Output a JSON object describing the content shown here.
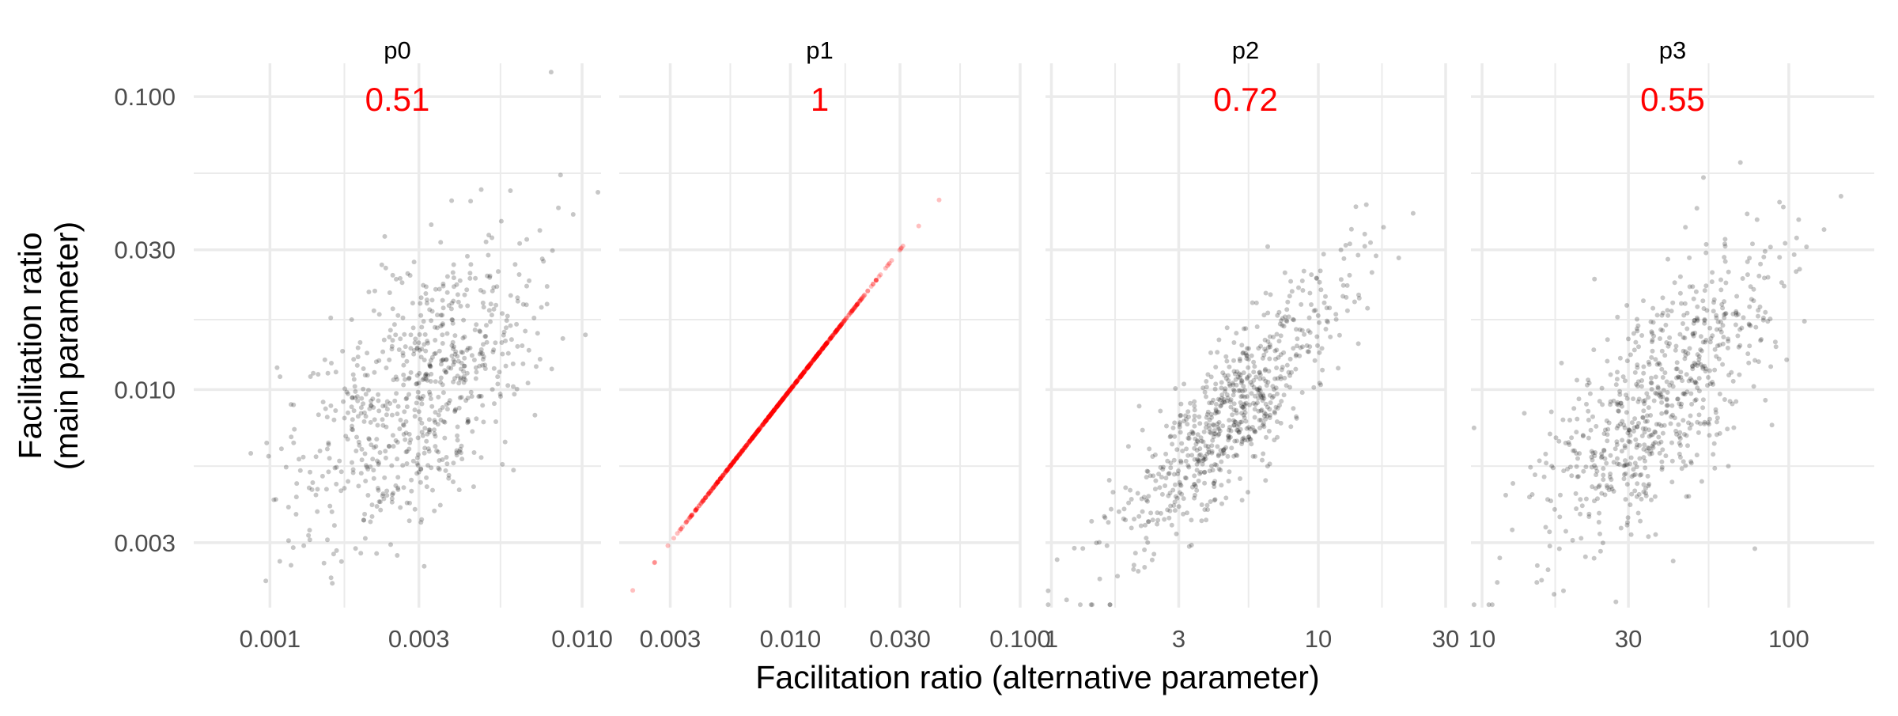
{
  "chart_data": {
    "type": "scatter",
    "xlabel": "Facilitation ratio (alternative parameter)",
    "ylabel": [
      "Facilitation ratio",
      "(main parameter)"
    ],
    "y_scale": "log",
    "ylim": [
      0.0018,
      0.13
    ],
    "y_ticks": [
      {
        "value": 0.003,
        "label": "0.003"
      },
      {
        "value": 0.01,
        "label": "0.010"
      },
      {
        "value": 0.03,
        "label": "0.030"
      },
      {
        "value": 0.1,
        "label": "0.100"
      }
    ],
    "point_count_per_panel": 700,
    "colors": {
      "points": "#000000",
      "highlight": "#ff0000",
      "grid": "#ebebeb",
      "text": "#4d4d4d",
      "title": "#000000"
    },
    "panels": [
      {
        "title": "p0",
        "correlation": "0.51",
        "x_scale": "log",
        "xlim": [
          0.00057,
          0.0115
        ],
        "x_ticks": [
          {
            "value": 0.001,
            "label": "0.001"
          },
          {
            "value": 0.003,
            "label": "0.003"
          },
          {
            "value": 0.01,
            "label": "0.010"
          }
        ],
        "trend": {
          "slope": 0.75,
          "intercept": -0.12,
          "scatter_sd": 0.22,
          "x_center": 0.003,
          "x_spread_sd": 0.19
        },
        "color": "#000000",
        "opacity": 0.22
      },
      {
        "title": "p1",
        "correlation": "1",
        "x_scale": "log",
        "xlim": [
          0.0018,
          0.1
        ],
        "x_ticks": [
          {
            "value": 0.003,
            "label": "0.003"
          },
          {
            "value": 0.01,
            "label": "0.010"
          },
          {
            "value": 0.03,
            "label": "0.030"
          },
          {
            "value": 0.1,
            "label": "0.100"
          }
        ],
        "trend": {
          "slope": 1.0,
          "intercept": 0.0,
          "scatter_sd": 0.0,
          "x_center": 0.009,
          "x_spread_sd": 0.22
        },
        "color": "#ff0000",
        "opacity": 0.25
      },
      {
        "title": "p2",
        "correlation": "0.72",
        "x_scale": "log",
        "xlim": [
          0.95,
          30
        ],
        "x_ticks": [
          {
            "value": 1,
            "label": "1"
          },
          {
            "value": 3,
            "label": "3"
          },
          {
            "value": 10,
            "label": "10"
          },
          {
            "value": 30,
            "label": "30"
          }
        ],
        "trend": {
          "slope": 0.95,
          "intercept": -2.72,
          "scatter_sd": 0.13,
          "x_center": 4.5,
          "x_spread_sd": 0.22
        },
        "color": "#000000",
        "opacity": 0.22
      },
      {
        "title": "p3",
        "correlation": "0.55",
        "x_scale": "log",
        "xlim": [
          9.2,
          190
        ],
        "x_ticks": [
          {
            "value": 10,
            "label": "10"
          },
          {
            "value": 30,
            "label": "30"
          },
          {
            "value": 100,
            "label": "100"
          }
        ],
        "trend": {
          "slope": 0.95,
          "intercept": -3.55,
          "scatter_sd": 0.2,
          "x_center": 38,
          "x_spread_sd": 0.2
        },
        "color": "#000000",
        "opacity": 0.22
      }
    ]
  }
}
